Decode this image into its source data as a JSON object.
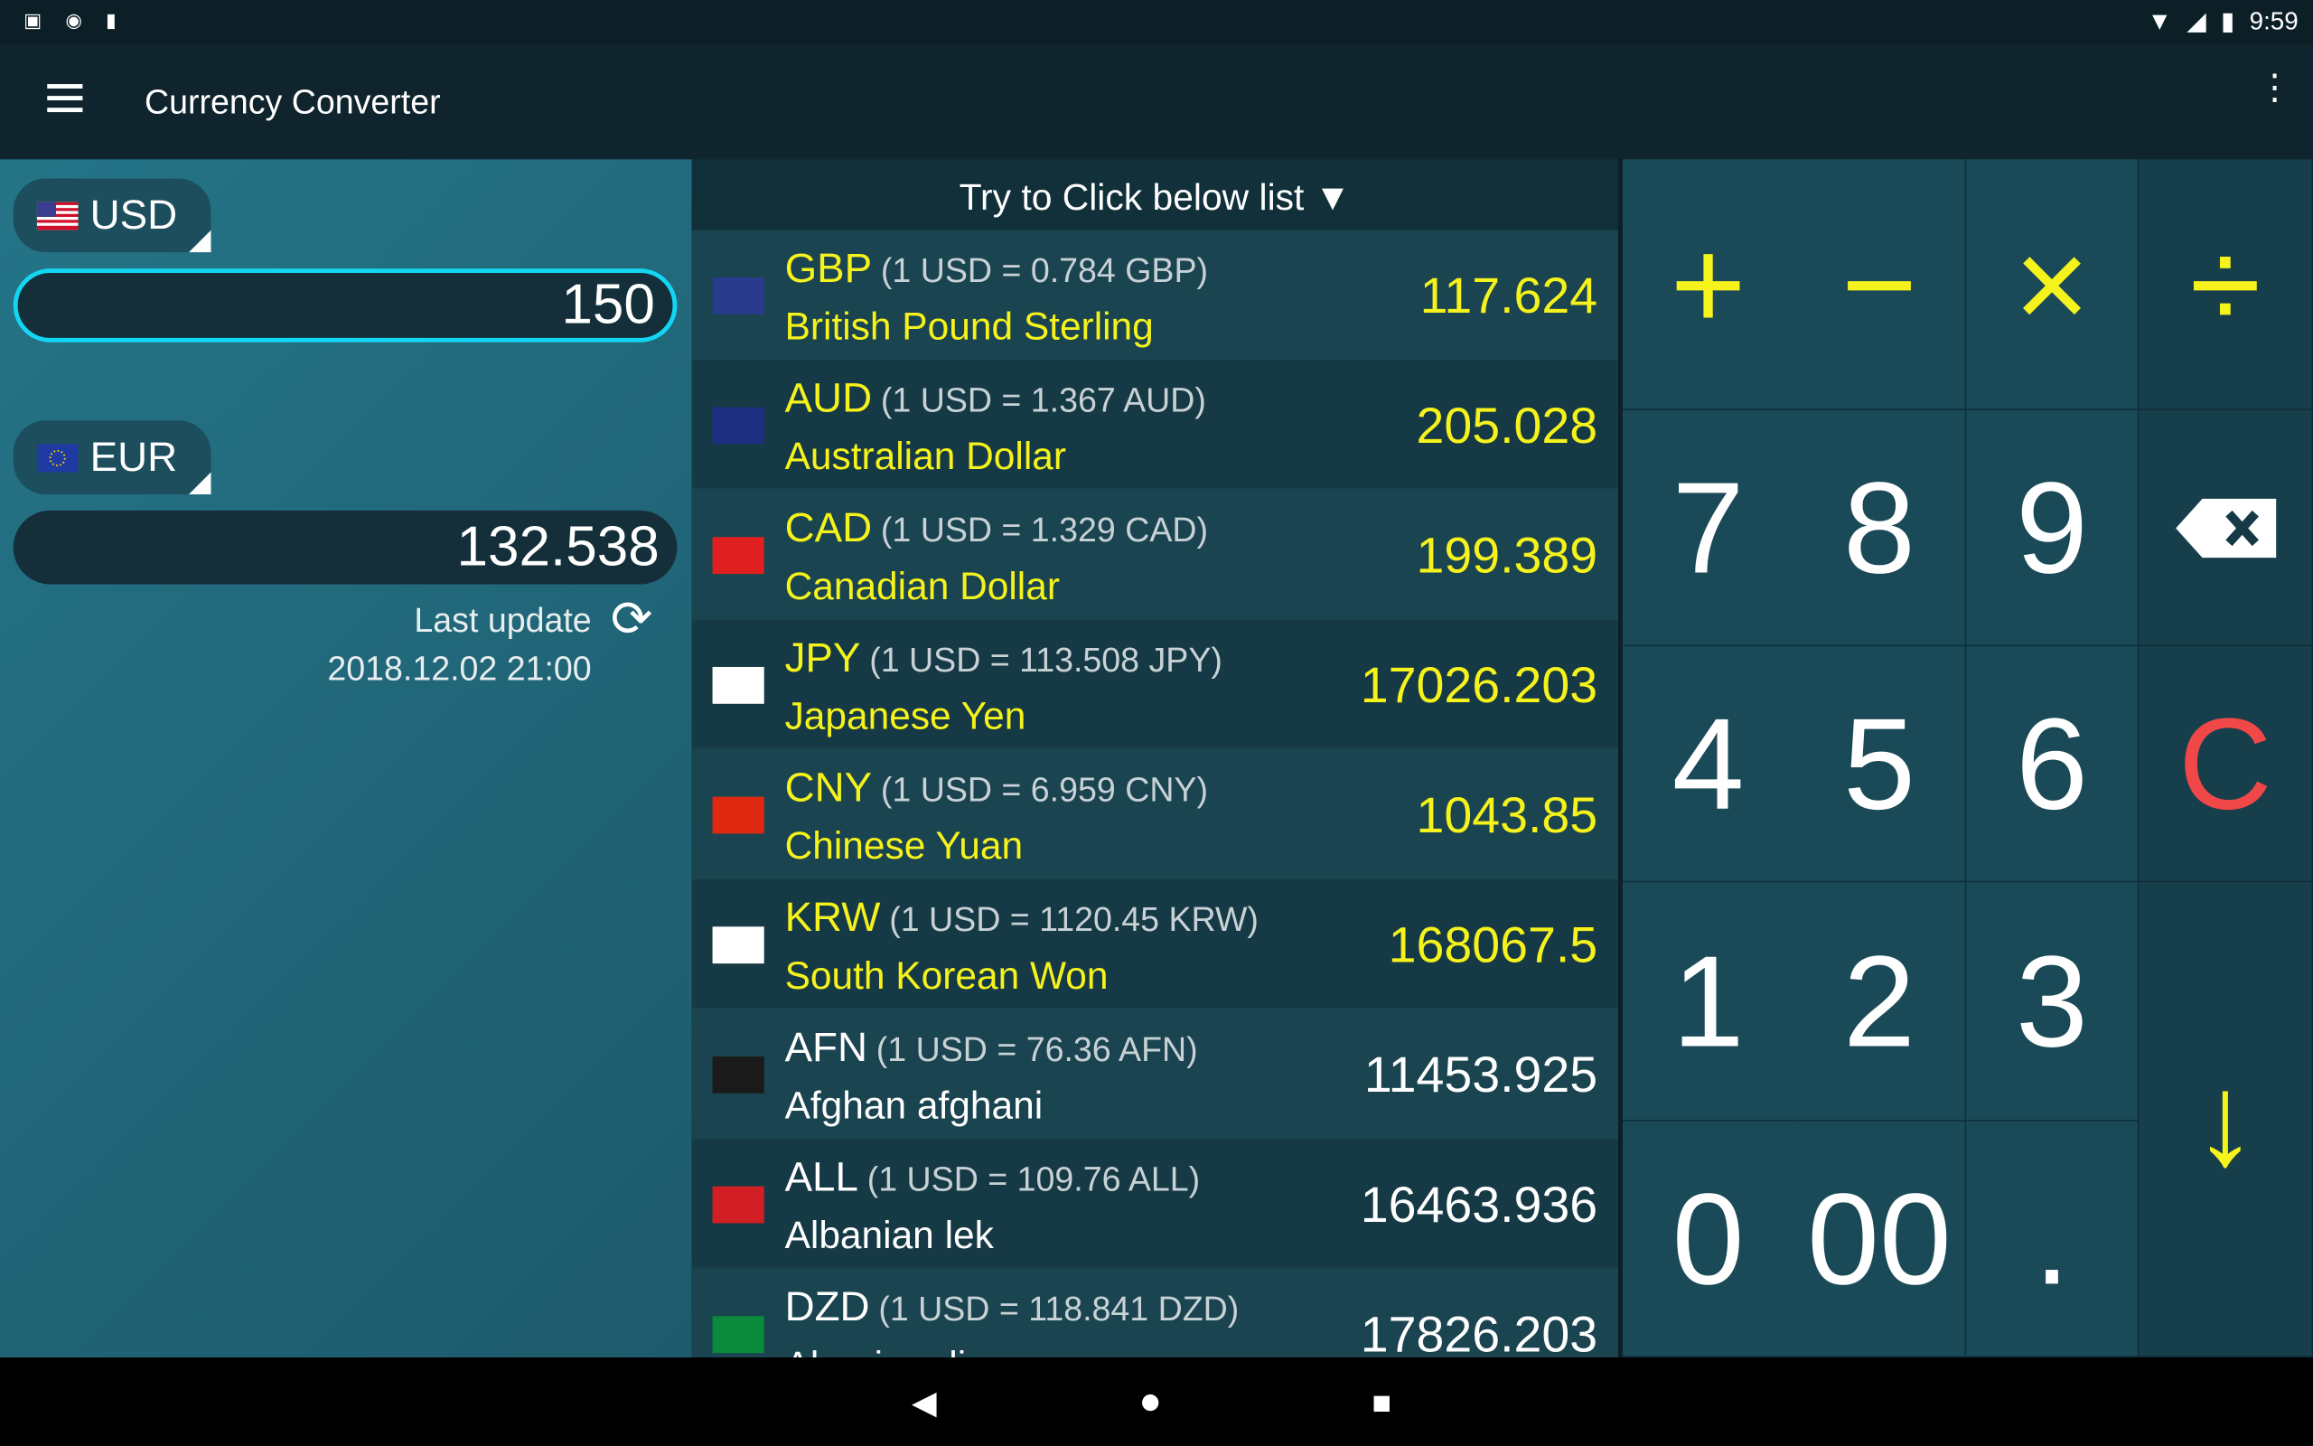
{
  "status": {
    "time": "9:59",
    "icons": [
      "a-notification-icon",
      "circle-icon",
      "sd-card-icon",
      "wifi-icon",
      "signal-icon",
      "battery-charging-icon"
    ]
  },
  "app": {
    "title": "Currency Converter"
  },
  "converter": {
    "from_code": "USD",
    "from_value": "150",
    "to_code": "EUR",
    "to_value": "132.538",
    "last_update_label": "Last update",
    "last_update": "2018.12.02 21:00"
  },
  "list": {
    "header": "Try to Click below list ▼",
    "items": [
      {
        "code": "GBP",
        "rate": "(1 USD = 0.784 GBP)",
        "name": "British Pound Sterling",
        "value": "117.624",
        "highlight": true
      },
      {
        "code": "AUD",
        "rate": "(1 USD = 1.367 AUD)",
        "name": "Australian Dollar",
        "value": "205.028",
        "highlight": true
      },
      {
        "code": "CAD",
        "rate": "(1 USD = 1.329 CAD)",
        "name": "Canadian Dollar",
        "value": "199.389",
        "highlight": true
      },
      {
        "code": "JPY",
        "rate": "(1 USD = 113.508 JPY)",
        "name": "Japanese Yen",
        "value": "17026.203",
        "highlight": true
      },
      {
        "code": "CNY",
        "rate": "(1 USD = 6.959 CNY)",
        "name": "Chinese Yuan",
        "value": "1043.85",
        "highlight": true
      },
      {
        "code": "KRW",
        "rate": "(1 USD = 1120.45 KRW)",
        "name": "South Korean Won",
        "value": "168067.5",
        "highlight": true
      },
      {
        "code": "AFN",
        "rate": "(1 USD = 76.36 AFN)",
        "name": "Afghan afghani",
        "value": "11453.925",
        "highlight": false
      },
      {
        "code": "ALL",
        "rate": "(1 USD = 109.76 ALL)",
        "name": "Albanian lek",
        "value": "16463.936",
        "highlight": false
      },
      {
        "code": "DZD",
        "rate": "(1 USD = 118.841 DZD)",
        "name": "Algerian dinar",
        "value": "17826.203",
        "highlight": false
      }
    ]
  },
  "keypad": {
    "plus": "+",
    "minus": "−",
    "times": "×",
    "divide": "÷",
    "k7": "7",
    "k8": "8",
    "k9": "9",
    "k4": "4",
    "k5": "5",
    "k6": "6",
    "clear": "C",
    "k1": "1",
    "k2": "2",
    "k3": "3",
    "k0": "0",
    "k00": "00",
    "dot": ".",
    "enter": "↓"
  },
  "colors": {
    "accent": "#f5f21c",
    "clear": "#f04848",
    "input_border": "#12d6f2"
  }
}
